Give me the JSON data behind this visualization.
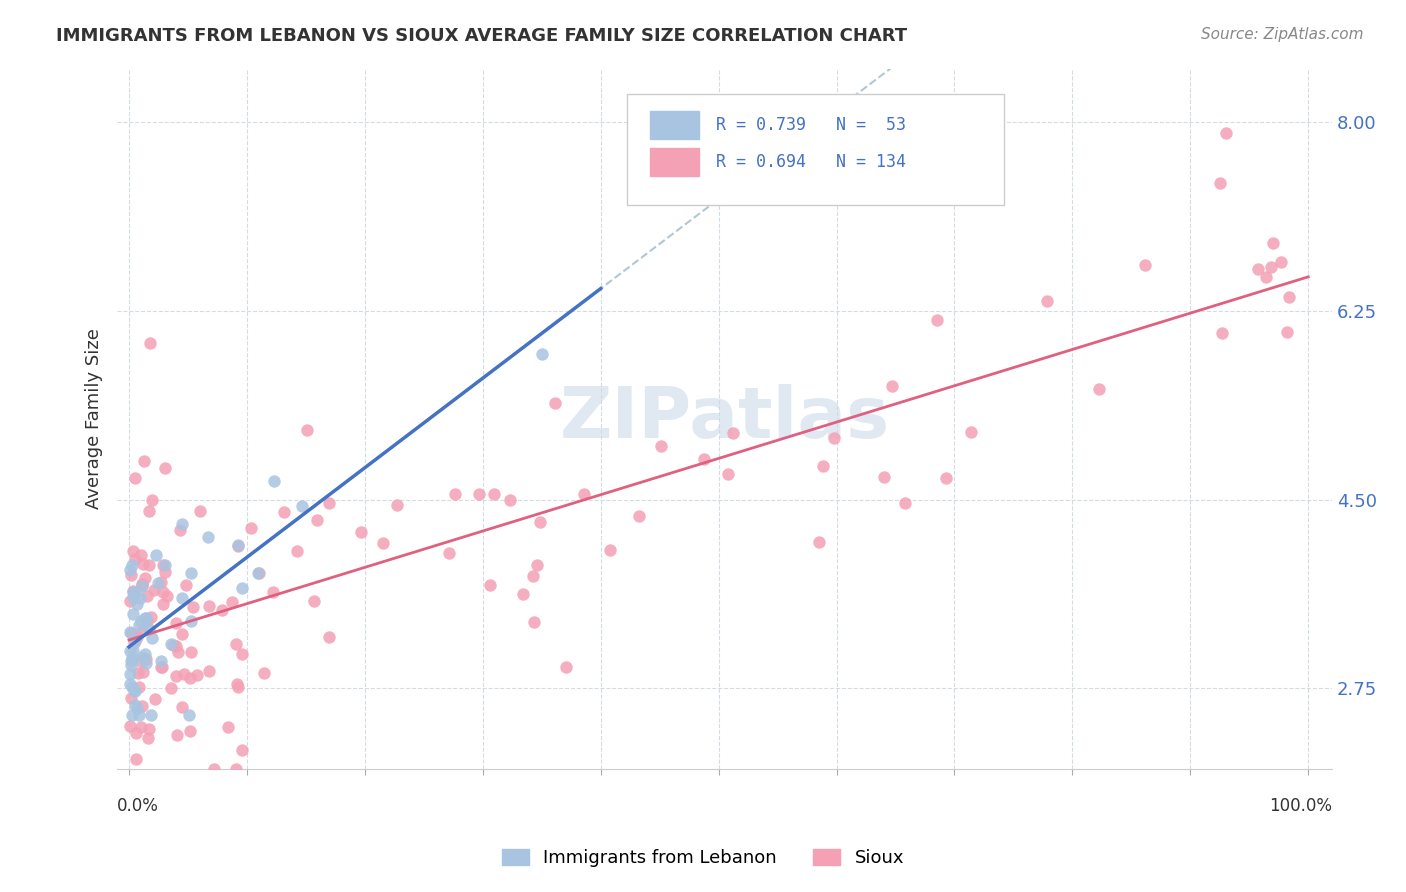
{
  "title": "IMMIGRANTS FROM LEBANON VS SIOUX AVERAGE FAMILY SIZE CORRELATION CHART",
  "source": "Source: ZipAtlas.com",
  "ylabel": "Average Family Size",
  "yticks": [
    2.75,
    4.5,
    6.25,
    8.0
  ],
  "ytick_labels": [
    "2.75",
    "4.50",
    "6.25",
    "8.00"
  ],
  "background_color": "#ffffff",
  "watermark": "ZIPatlas",
  "lebanon_R": "0.739",
  "lebanon_N": "53",
  "sioux_R": "0.694",
  "sioux_N": "134",
  "lebanon_label": "Immigrants from Lebanon",
  "sioux_label": "Sioux",
  "lebanon_color": "#a8c4e0",
  "sioux_color": "#f4a0b5",
  "lebanon_line_color": "#4472c4",
  "sioux_line_color": "#e06080",
  "dash_line_color": "#a0b8c8",
  "grid_color": "#d0d8e0",
  "title_color": "#333333",
  "source_color": "#888888",
  "tick_color": "#4472c4",
  "ylabel_color": "#333333",
  "legend_text_color": "#4472c4",
  "watermark_color": "#c8d8e8"
}
